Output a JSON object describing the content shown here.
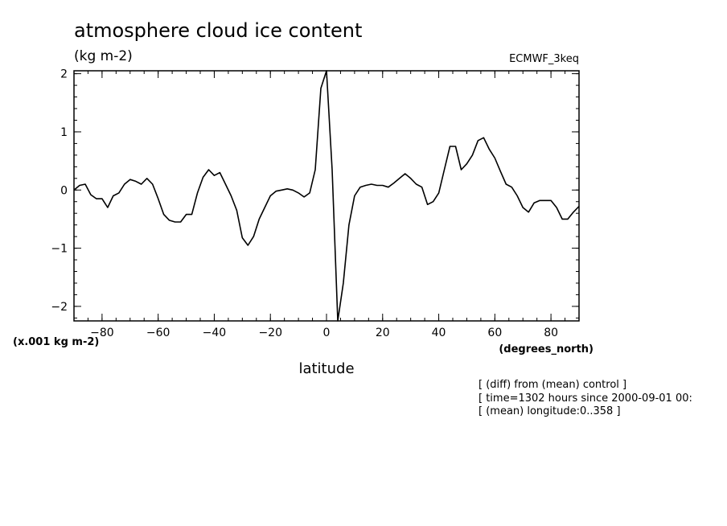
{
  "header": {
    "title": "atmosphere cloud ice content",
    "units": "(kg m-2)",
    "dataset": "ECMWF_3keq",
    "scale_note": "(x.001 kg m-2)",
    "x_units": "(degrees_north)"
  },
  "footnotes": [
    "[ (diff) from (mean) control ]",
    "[ time=1302 hours since 2000-09-01 00:",
    "[ (mean) longitude:0..358 ]"
  ],
  "chart_data": {
    "type": "line",
    "title": "atmosphere cloud ice content",
    "xlabel": "latitude",
    "ylabel": "(kg m-2)",
    "xlim": [
      -90,
      90
    ],
    "ylim": [
      -2.25,
      2.05
    ],
    "xticks": [
      -80,
      -60,
      -40,
      -20,
      0,
      20,
      40,
      60,
      80
    ],
    "yticks": [
      -2,
      -1,
      0,
      1,
      2
    ],
    "x_minor_step": 5,
    "y_minor_step": 0.2,
    "grid": false,
    "series": [
      {
        "color": "#000000",
        "x": [
          -90,
          -88,
          -86,
          -84,
          -82,
          -80,
          -78,
          -76,
          -74,
          -72,
          -70,
          -68,
          -66,
          -64,
          -62,
          -60,
          -58,
          -56,
          -54,
          -52,
          -50,
          -48,
          -46,
          -44,
          -42,
          -40,
          -38,
          -36,
          -34,
          -32,
          -30,
          -28,
          -26,
          -24,
          -22,
          -20,
          -18,
          -16,
          -14,
          -12,
          -10,
          -8,
          -6,
          -4,
          -2,
          0,
          2,
          4,
          6,
          8,
          10,
          12,
          14,
          16,
          18,
          20,
          22,
          24,
          26,
          28,
          30,
          32,
          34,
          36,
          38,
          40,
          42,
          44,
          46,
          48,
          50,
          52,
          54,
          56,
          58,
          60,
          62,
          64,
          66,
          68,
          70,
          72,
          74,
          76,
          78,
          80,
          82,
          84,
          86,
          88,
          90
        ],
        "y": [
          0.0,
          0.08,
          0.1,
          -0.08,
          -0.15,
          -0.15,
          -0.3,
          -0.1,
          -0.05,
          0.1,
          0.18,
          0.15,
          0.1,
          0.2,
          0.1,
          -0.15,
          -0.42,
          -0.52,
          -0.55,
          -0.55,
          -0.42,
          -0.42,
          -0.05,
          0.22,
          0.35,
          0.25,
          0.3,
          0.1,
          -0.1,
          -0.35,
          -0.82,
          -0.95,
          -0.8,
          -0.5,
          -0.3,
          -0.1,
          -0.02,
          0.0,
          0.02,
          0.0,
          -0.05,
          -0.12,
          -0.05,
          0.35,
          1.75,
          2.05,
          0.35,
          -2.25,
          -1.6,
          -0.6,
          -0.1,
          0.05,
          0.08,
          0.1,
          0.08,
          0.08,
          0.05,
          0.12,
          0.2,
          0.28,
          0.2,
          0.1,
          0.05,
          -0.25,
          -0.2,
          -0.05,
          0.35,
          0.75,
          0.75,
          0.35,
          0.45,
          0.6,
          0.85,
          0.9,
          0.7,
          0.55,
          0.32,
          0.1,
          0.05,
          -0.1,
          -0.3,
          -0.38,
          -0.22,
          -0.18,
          -0.18,
          -0.18,
          -0.3,
          -0.5,
          -0.5,
          -0.38,
          -0.28
        ]
      }
    ]
  }
}
